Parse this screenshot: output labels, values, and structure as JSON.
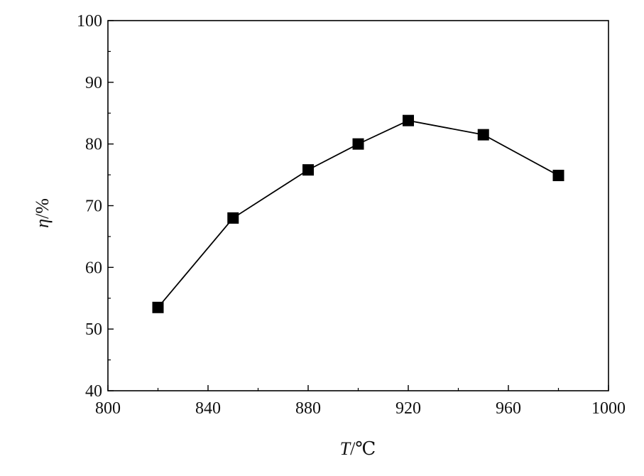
{
  "chart_data": {
    "type": "line",
    "title": "",
    "xlabel": "T/℃",
    "xlabel_parts": {
      "symbol": "T",
      "unit": "/℃"
    },
    "ylabel": "η/%",
    "ylabel_parts": {
      "symbol": "η",
      "unit": "/%"
    },
    "xlim": [
      800,
      1000
    ],
    "ylim": [
      40,
      100
    ],
    "x_ticks": [
      800,
      840,
      880,
      920,
      960,
      1000
    ],
    "y_ticks": [
      40,
      50,
      60,
      70,
      80,
      90,
      100
    ],
    "grid": false,
    "legend": "none",
    "marker": "square",
    "series": [
      {
        "x": [
          820,
          850,
          880,
          900,
          920,
          950,
          980
        ],
        "y": [
          53.5,
          68,
          75.8,
          80,
          83.8,
          81.5,
          74.9
        ]
      }
    ],
    "colors": {
      "line": "#000000",
      "marker": "#000000",
      "axes": "#000000"
    }
  }
}
